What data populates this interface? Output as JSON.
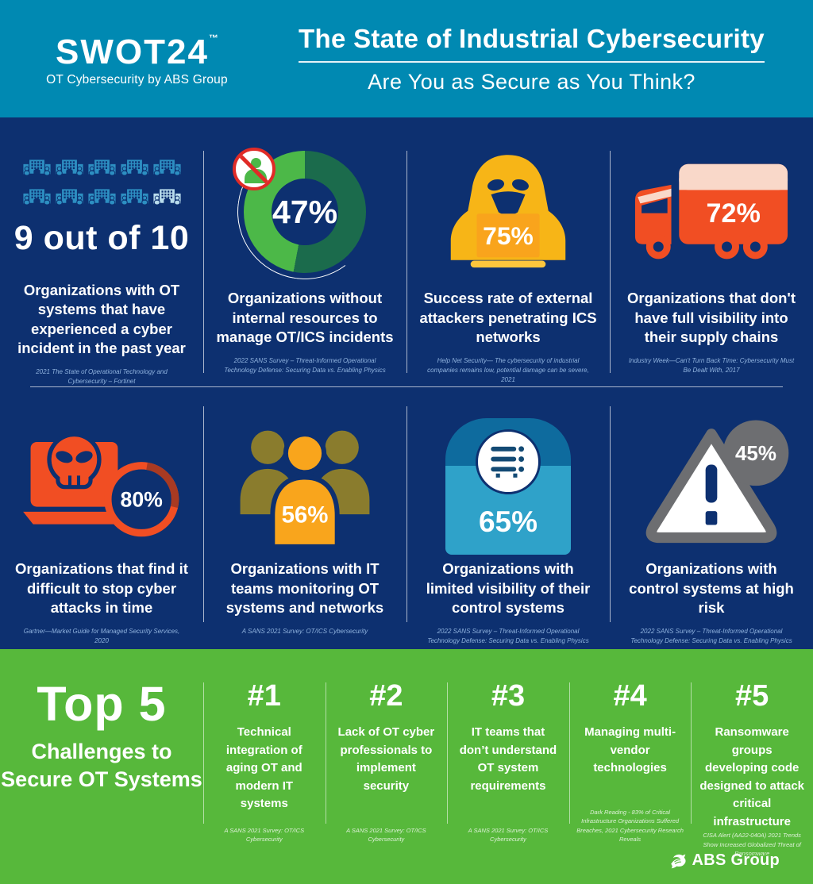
{
  "header": {
    "logo_text": "SWOT24",
    "logo_tm": "™",
    "logo_tagline": "OT Cybersecurity by ABS Group",
    "title": "The State of Industrial Cybersecurity",
    "subtitle": "Are You as Secure as You Think?"
  },
  "colors": {
    "navy": "#0d3070",
    "teal_header": "#0089b2",
    "green": "#57b83b",
    "icon_blue": "#2d8fc2",
    "icon_blue_light": "#b9dcec",
    "green_bright": "#4cb848",
    "green_dark": "#1b6b4c",
    "red": "#e02b27",
    "orange_red": "#f14e23",
    "orange_red_dark": "#a93a22",
    "pink": "#f9d8c9",
    "yellow": "#f7b517",
    "orange": "#f9a41c",
    "yellow_light": "#fdc63d",
    "olive": "#8a7c2d",
    "amber": "#f9a51c",
    "teal_dark": "#0e6b9e",
    "teal_light": "#2fa2c9",
    "gray": "#6d6e71",
    "source_text": "#8fb2de"
  },
  "stats": [
    {
      "value": "9 out of 10",
      "total_icons": 10,
      "highlighted_icons": 9,
      "headline": "Organizations with OT systems that have experienced a cyber incident in the past year",
      "source": "2021 The State of Operational Technology and Cybersecurity – Fortinet"
    },
    {
      "value": "47%",
      "headline": "Organizations without internal resources to manage OT/ICS incidents",
      "source": "2022 SANS Survey – Threat-Informed Operational Technology Defense: Securing Data vs. Enabling Physics"
    },
    {
      "value": "75%",
      "headline": "Success rate of external attackers penetrating ICS networks",
      "source": "Help Net Security— The cybersecurity of industrial companies remains low, potential damage can be severe, 2021"
    },
    {
      "value": "72%",
      "headline": "Organizations that don't have full visibility into their supply chains",
      "source": "Industry Week—Can't Turn Back Time: Cybersecurity Must Be Dealt With, 2017"
    },
    {
      "value": "80%",
      "headline": "Organizations that find it difficult to stop cyber attacks in time",
      "source": "Gartner—Market Guide for Managed Security Services, 2020"
    },
    {
      "value": "56%",
      "headline": "Organizations with IT teams monitoring OT systems and networks",
      "source": "A SANS 2021 Survey: OT/ICS Cybersecurity"
    },
    {
      "value": "65%",
      "headline": "Organizations with limited visibility of their control systems",
      "source": "2022 SANS Survey – Threat-Informed Operational Technology Defense: Securing Data vs. Enabling Physics"
    },
    {
      "value": "45%",
      "headline": "Organizations with control systems at high risk",
      "source": "2022 SANS Survey – Threat-Informed Operational Technology Defense: Securing Data vs. Enabling Physics"
    }
  ],
  "top5": {
    "title": "Top 5",
    "subtitle": "Challenges to Secure OT Systems",
    "items": [
      {
        "rank": "#1",
        "text": "Technical integration of aging OT and modern IT systems",
        "source": "A SANS 2021 Survey: OT/ICS Cybersecurity"
      },
      {
        "rank": "#2",
        "text": "Lack of OT cyber professionals to implement security",
        "source": "A SANS 2021 Survey: OT/ICS Cybersecurity"
      },
      {
        "rank": "#3",
        "text": "IT teams that don’t understand OT system requirements",
        "source": "A SANS 2021 Survey: OT/ICS Cybersecurity"
      },
      {
        "rank": "#4",
        "text": "Managing multi-vendor technologies",
        "source": "Dark Reading - 83% of Critical Infrastructure Organizations Suffered Breaches, 2021 Cybersecurity Research Reveals"
      },
      {
        "rank": "#5",
        "text": "Ransomware groups developing code designed to attack critical infrastructure",
        "source": "CISA Alert (AA22-040A) 2021 Trends Show Increased Globalized Threat of Ransomware"
      }
    ]
  },
  "footer": {
    "brand": "ABS Group"
  },
  "chart_data": {
    "type": "pie",
    "title": "Organizations without internal resources to manage OT/ICS incidents",
    "categories": [
      "Without internal resources",
      "With internal resources"
    ],
    "values": [
      47,
      53
    ],
    "center_label": "47%",
    "colors": [
      "#4cb848",
      "#1b6b4c"
    ]
  }
}
